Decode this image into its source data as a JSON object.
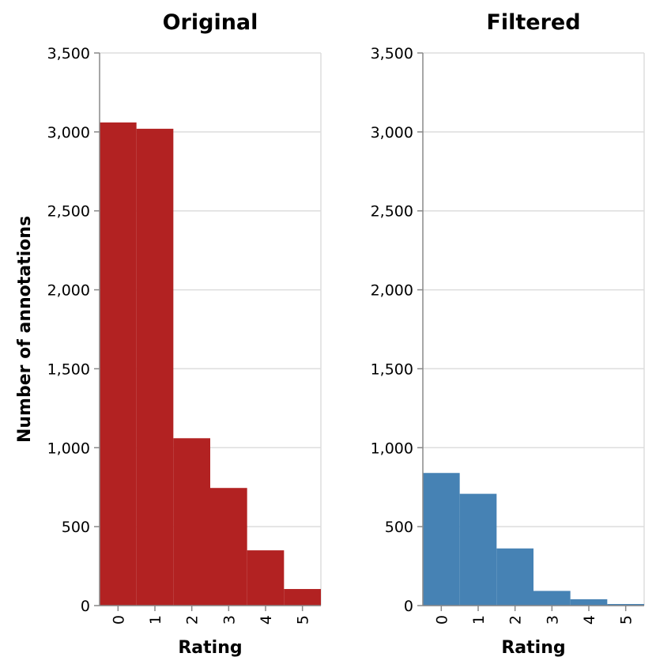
{
  "chart_data": [
    {
      "type": "bar",
      "title": "Original",
      "xlabel": "Rating",
      "ylabel": "Number of annotations",
      "categories": [
        "0",
        "1",
        "2",
        "3",
        "4",
        "5"
      ],
      "values": [
        3060,
        3020,
        1060,
        745,
        350,
        105
      ],
      "ylim": [
        0,
        3500
      ],
      "yticks": [
        "0",
        "500",
        "1,000",
        "1,500",
        "2,000",
        "2,500",
        "3,000",
        "3,500"
      ],
      "grid": true,
      "color": "#b22222"
    },
    {
      "type": "bar",
      "title": "Filtered",
      "xlabel": "Rating",
      "ylabel": "",
      "categories": [
        "0",
        "1",
        "2",
        "3",
        "4",
        "5"
      ],
      "values": [
        840,
        708,
        362,
        93,
        40,
        10
      ],
      "ylim": [
        0,
        3500
      ],
      "yticks": [
        "0",
        "500",
        "1,000",
        "1,500",
        "2,000",
        "2,500",
        "3,000",
        "3,500"
      ],
      "grid": true,
      "color": "#4682b4"
    }
  ]
}
